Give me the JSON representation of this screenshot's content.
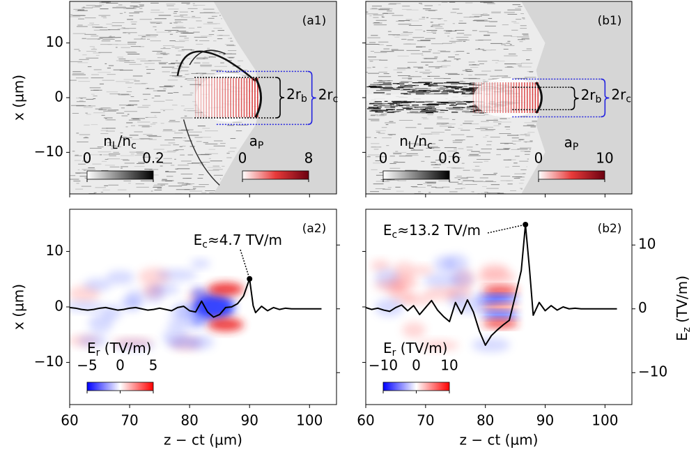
{
  "chart_data": [
    {
      "type": "heatmap",
      "panel_label": "(a1)",
      "xlim": [
        60,
        104.5
      ],
      "ylim": [
        -17.6,
        17.6
      ],
      "xticks": [
        60,
        70,
        80,
        90,
        100
      ],
      "xtick_labels": false,
      "yticks": [
        {
          "value": -10,
          "label": "−10"
        },
        0,
        10
      ],
      "ylabel": "x (µm)",
      "colorbars": [
        {
          "label_parts": [
            "n",
            "L",
            "/n",
            "c"
          ],
          "lim": [
            0,
            0.2
          ],
          "ticks": [
            0,
            0.2
          ],
          "colors": [
            "#ffffff",
            "#000000"
          ]
        },
        {
          "label_parts": [
            "a",
            "P"
          ],
          "lim": [
            0,
            8
          ],
          "ticks": [
            0,
            8
          ],
          "colors": [
            "#ffffff",
            "#e83a3a",
            "#6b0010"
          ]
        }
      ],
      "brackets": [
        {
          "label_parts": [
            "2r",
            "b"
          ],
          "x": [
            80.8,
            94.4
          ],
          "y": [
            -3.7,
            3.7
          ],
          "color": "#000000"
        },
        {
          "label_parts": [
            "2r",
            "c"
          ],
          "x": [
            84.5,
            99.7
          ],
          "y": [
            -4.9,
            4.8
          ],
          "color": "#2323e0"
        }
      ]
    },
    {
      "type": "heatmap",
      "panel_label": "(b1)",
      "xlim": [
        60,
        104.5
      ],
      "ylim": [
        -17.6,
        17.6
      ],
      "xticks": [
        60,
        70,
        80,
        90,
        100
      ],
      "xtick_labels": false,
      "yticks": [
        -10,
        0,
        10
      ],
      "ytick_labels": false,
      "colorbars": [
        {
          "label_parts": [
            "n",
            "L",
            "/n",
            "c"
          ],
          "lim": [
            0,
            0.6
          ],
          "ticks": [
            0,
            0.6
          ],
          "colors": [
            "#ffffff",
            "#000000"
          ]
        },
        {
          "label_parts": [
            "a",
            "P"
          ],
          "lim": [
            0,
            10
          ],
          "ticks": [
            0,
            10
          ],
          "colors": [
            "#ffffff",
            "#e83a3a",
            "#6b0010"
          ]
        }
      ],
      "brackets": [
        {
          "label_parts": [
            "2r",
            "b"
          ],
          "x": [
            84.5,
            94.2
          ],
          "y": [
            -2.2,
            1.9
          ],
          "color": "#000000"
        },
        {
          "label_parts": [
            "2r",
            "c"
          ],
          "x": [
            84.5,
            99.3
          ],
          "y": [
            -3.5,
            3.4
          ],
          "color": "#2323e0"
        }
      ]
    },
    {
      "type": "line",
      "panel_label": "(a2)",
      "xlim": [
        60,
        104.5
      ],
      "ylim": [
        -17.6,
        17.6
      ],
      "y2lim": [
        -15,
        15.6
      ],
      "xticks": [
        60,
        70,
        80,
        90,
        100
      ],
      "xlabel": "z − ct (µm)",
      "yticks": [
        {
          "value": -10,
          "label": "−10"
        },
        0,
        10
      ],
      "ylabel": "x (µm)",
      "y2ticks": [
        -10,
        0,
        10
      ],
      "y2tick_labels": false,
      "colorbars": [
        {
          "label_parts": [
            "E",
            "r",
            " (TV/m)"
          ],
          "lim": [
            -5,
            5
          ],
          "ticks": [
            {
              "value": -5,
              "label": "−5"
            },
            0,
            5
          ],
          "colors": [
            "#0000ff",
            "#ffffff",
            "#ff0000"
          ]
        }
      ],
      "series": [
        {
          "color": "#000000",
          "axis": "y2",
          "x": [
            60,
            61,
            62,
            63,
            64,
            65,
            66,
            67,
            68,
            69,
            70,
            71,
            72,
            73,
            74,
            75,
            76,
            77,
            78,
            79,
            80,
            81,
            82,
            83,
            84,
            85,
            86,
            87,
            88,
            89,
            90,
            90.6,
            91,
            92,
            93,
            94,
            95,
            96,
            97,
            98,
            100,
            102
          ],
          "values": [
            0.2,
            0.1,
            -0.1,
            -0.2,
            -0.1,
            0.1,
            0.2,
            0,
            -0.2,
            -0.1,
            0.1,
            0.2,
            0,
            -0.2,
            -0.1,
            0.1,
            -0.1,
            -0.3,
            0.2,
            0.4,
            -0.3,
            -0.5,
            1.2,
            -0.5,
            -1.3,
            -0.9,
            0.2,
            0.3,
            0.8,
            2.0,
            4.7,
            0.5,
            -0.6,
            0.4,
            -0.3,
            0.2,
            -0.1,
            0.1,
            0,
            0,
            0,
            0
          ]
        }
      ],
      "annotations": [
        {
          "text_parts": [
            "E",
            "c",
            "≈4.7 TV/m"
          ],
          "x": 90,
          "y": 4.7
        }
      ]
    },
    {
      "type": "line",
      "panel_label": "(b2)",
      "xlim": [
        60,
        104.5
      ],
      "ylim": [
        -17.6,
        17.6
      ],
      "y2lim": [
        -15,
        15.6
      ],
      "xticks": [
        60,
        70,
        80,
        90,
        100
      ],
      "xlabel": "z − ct (µm)",
      "yticks": [
        -10,
        0,
        10
      ],
      "ytick_labels": false,
      "y2ticks": [
        {
          "value": -10,
          "label": "−10"
        },
        0,
        10
      ],
      "y2label_parts": [
        "E",
        "z",
        " (TV/m)"
      ],
      "colorbars": [
        {
          "label_parts": [
            "E",
            "r",
            " (TV/m)"
          ],
          "lim": [
            -10,
            10
          ],
          "ticks": [
            {
              "value": -10,
              "label": "−10"
            },
            0,
            10
          ],
          "colors": [
            "#0000ff",
            "#ffffff",
            "#ff0000"
          ]
        }
      ],
      "series": [
        {
          "color": "#000000",
          "axis": "y2",
          "x": [
            60,
            61,
            62,
            63,
            64,
            65,
            66,
            67,
            68,
            69,
            70,
            71,
            72,
            73,
            74,
            75,
            76,
            77,
            78,
            79,
            80,
            81,
            82,
            83,
            84,
            85,
            86,
            86.7,
            87.4,
            88,
            89,
            90,
            91,
            92,
            93,
            94,
            95,
            96,
            98,
            100,
            102
          ],
          "values": [
            0.2,
            -0.1,
            0.1,
            -0.2,
            -0.4,
            0.2,
            0.6,
            -0.3,
            0.5,
            -0.9,
            0.2,
            1.3,
            -0.2,
            -1.2,
            -2.0,
            1.0,
            -0.8,
            1.4,
            -0.5,
            -3.5,
            -5.7,
            -4.2,
            -3.3,
            -2.5,
            -1.8,
            2.0,
            6,
            13.2,
            6,
            -1.0,
            1.0,
            -0.3,
            0.5,
            -0.2,
            0.3,
            0,
            0.1,
            0,
            0,
            0,
            0
          ]
        }
      ],
      "annotations": [
        {
          "text_parts": [
            "E",
            "c",
            "≈13.2 TV/m"
          ],
          "x": 86.7,
          "y": 13.2
        }
      ]
    }
  ]
}
